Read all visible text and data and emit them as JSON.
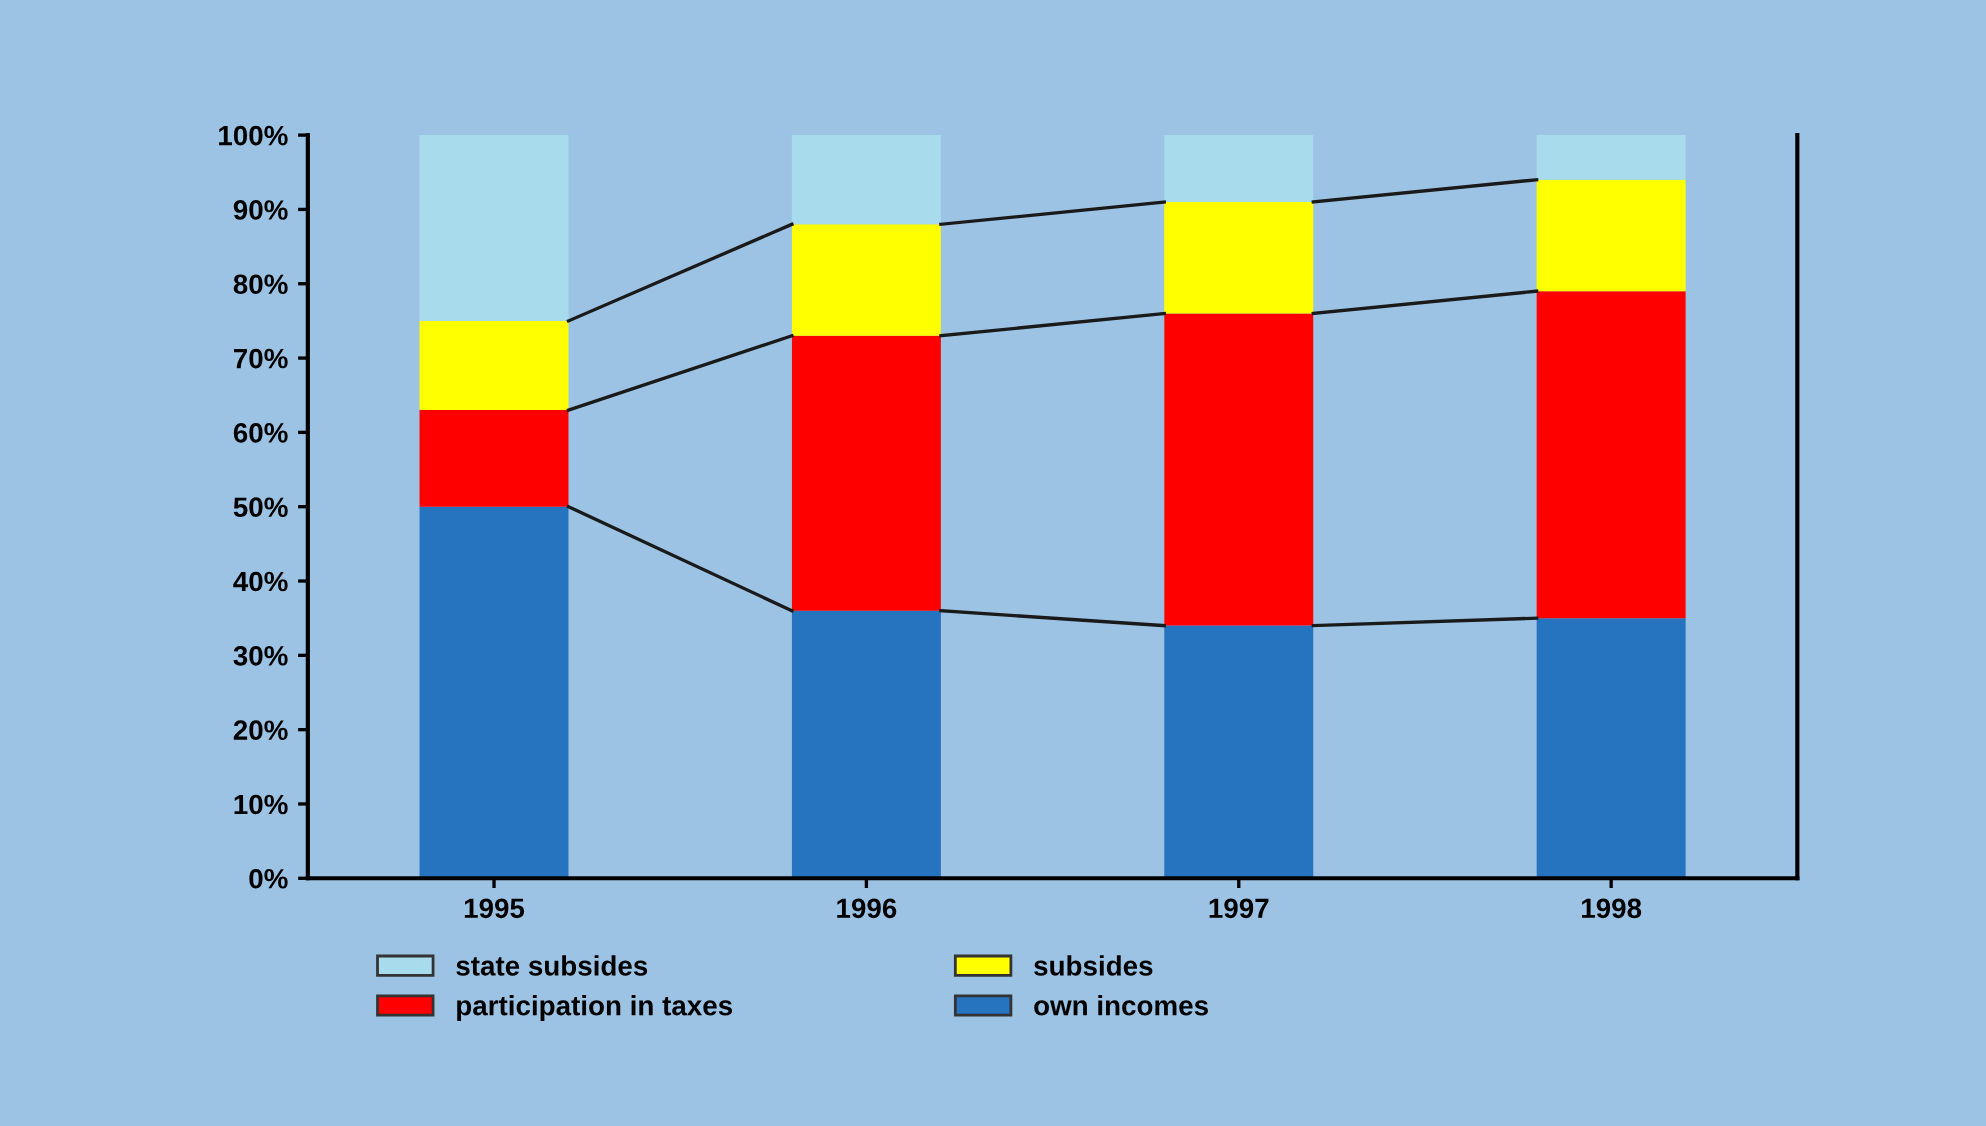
{
  "chart_data": {
    "type": "bar",
    "stacked": true,
    "categories": [
      "1995",
      "1996",
      "1997",
      "1998"
    ],
    "series": [
      {
        "name": "own incomes",
        "color": "#2673c0",
        "values": [
          50,
          36,
          34,
          35
        ]
      },
      {
        "name": "participation in taxes",
        "color": "#ff0000",
        "values": [
          13,
          37,
          42,
          44
        ]
      },
      {
        "name": "subsides",
        "color": "#ffff00",
        "values": [
          12,
          15,
          15,
          15
        ]
      },
      {
        "name": "state subsides",
        "color": "#a8dcec",
        "values": [
          25,
          12,
          9,
          6
        ]
      }
    ],
    "ylim": [
      0,
      100
    ],
    "yticks": [
      {
        "value": 0,
        "label": "0%"
      },
      {
        "value": 10,
        "label": "10%"
      },
      {
        "value": 20,
        "label": "20%"
      },
      {
        "value": 30,
        "label": "30%"
      },
      {
        "value": 40,
        "label": "40%"
      },
      {
        "value": 50,
        "label": "50%"
      },
      {
        "value": 60,
        "label": "60%"
      },
      {
        "value": 70,
        "label": "70%"
      },
      {
        "value": 80,
        "label": "80%"
      },
      {
        "value": 90,
        "label": "90%"
      },
      {
        "value": 100,
        "label": "100%"
      }
    ],
    "legend": "bottom",
    "grid": false
  }
}
